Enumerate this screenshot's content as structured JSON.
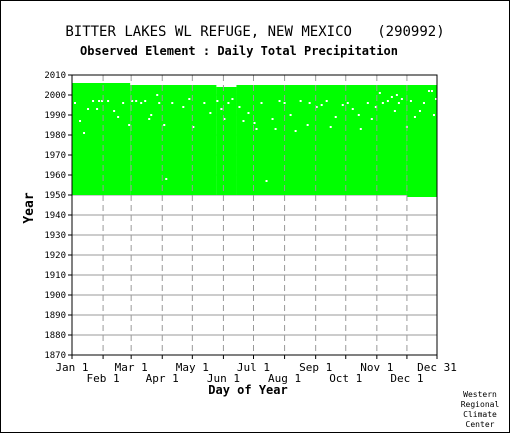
{
  "chart_data": {
    "type": "heatmap",
    "title": "BITTER LAKES WL REFUGE, NEW MEXICO   (290992)",
    "subtitle": "Observed Element : Daily Total Precipitation",
    "xlabel": "Day of Year",
    "ylabel": "Year",
    "ylim": [
      1870,
      2010
    ],
    "xlim": [
      1,
      365
    ],
    "yticks": [
      "1870",
      "1880",
      "1890",
      "1900",
      "1910",
      "1920",
      "1930",
      "1940",
      "1950",
      "1960",
      "1970",
      "1980",
      "1990",
      "2000",
      "2010"
    ],
    "xticks_upper": [
      {
        "label": "Jan 1",
        "day": 1
      },
      {
        "label": "Mar 1",
        "day": 60
      },
      {
        "label": "May 1",
        "day": 121
      },
      {
        "label": "Jul 1",
        "day": 182
      },
      {
        "label": "Sep 1",
        "day": 244
      },
      {
        "label": "Nov 1",
        "day": 305
      },
      {
        "label": "Dec 31",
        "day": 365
      }
    ],
    "xticks_lower": [
      {
        "label": "Feb 1",
        "day": 32
      },
      {
        "label": "Apr 1",
        "day": 91
      },
      {
        "label": "Jun 1",
        "day": 152
      },
      {
        "label": "Aug 1",
        "day": 213
      },
      {
        "label": "Oct 1",
        "day": 274
      },
      {
        "label": "Dec 1",
        "day": 335
      }
    ],
    "grid": true,
    "data_color": "#00ff00",
    "coverage": [
      {
        "day_start": 1,
        "day_end": 59,
        "year_start": 1950,
        "year_end": 2006
      },
      {
        "day_start": 59,
        "day_end": 145,
        "year_start": 1950,
        "year_end": 2005
      },
      {
        "day_start": 145,
        "day_end": 165,
        "year_start": 1950,
        "year_end": 2004
      },
      {
        "day_start": 165,
        "day_end": 335,
        "year_start": 1950,
        "year_end": 2005
      },
      {
        "day_start": 335,
        "day_end": 365,
        "year_start": 1949,
        "year_end": 2005
      }
    ],
    "missing_days": [
      {
        "day": 4,
        "year": 1996
      },
      {
        "day": 9,
        "year": 1987
      },
      {
        "day": 13,
        "year": 1981
      },
      {
        "day": 17,
        "year": 1993
      },
      {
        "day": 22,
        "year": 1997
      },
      {
        "day": 26,
        "year": 1993
      },
      {
        "day": 28,
        "year": 1997
      },
      {
        "day": 31,
        "year": 1997
      },
      {
        "day": 37,
        "year": 1997
      },
      {
        "day": 43,
        "year": 1992
      },
      {
        "day": 47,
        "year": 1989
      },
      {
        "day": 52,
        "year": 1996
      },
      {
        "day": 58,
        "year": 1985
      },
      {
        "day": 61,
        "year": 1997
      },
      {
        "day": 65,
        "year": 1997
      },
      {
        "day": 70,
        "year": 1996
      },
      {
        "day": 74,
        "year": 1997
      },
      {
        "day": 78,
        "year": 1988
      },
      {
        "day": 80,
        "year": 1990
      },
      {
        "day": 86,
        "year": 2000
      },
      {
        "day": 88,
        "year": 1996
      },
      {
        "day": 93,
        "year": 1985
      },
      {
        "day": 95,
        "year": 1958
      },
      {
        "day": 101,
        "year": 1996
      },
      {
        "day": 112,
        "year": 1994
      },
      {
        "day": 118,
        "year": 1998
      },
      {
        "day": 122,
        "year": 1984
      },
      {
        "day": 133,
        "year": 1996
      },
      {
        "day": 139,
        "year": 1991
      },
      {
        "day": 146,
        "year": 1997
      },
      {
        "day": 150,
        "year": 1993
      },
      {
        "day": 153,
        "year": 1988
      },
      {
        "day": 157,
        "year": 1996
      },
      {
        "day": 161,
        "year": 1998
      },
      {
        "day": 168,
        "year": 1994
      },
      {
        "day": 172,
        "year": 1987
      },
      {
        "day": 177,
        "year": 1991
      },
      {
        "day": 183,
        "year": 1986
      },
      {
        "day": 185,
        "year": 1983
      },
      {
        "day": 190,
        "year": 1996
      },
      {
        "day": 195,
        "year": 1957
      },
      {
        "day": 201,
        "year": 1988
      },
      {
        "day": 204,
        "year": 1983
      },
      {
        "day": 208,
        "year": 1997
      },
      {
        "day": 213,
        "year": 1996
      },
      {
        "day": 219,
        "year": 1990
      },
      {
        "day": 224,
        "year": 1982
      },
      {
        "day": 229,
        "year": 1997
      },
      {
        "day": 236,
        "year": 1985
      },
      {
        "day": 238,
        "year": 1996
      },
      {
        "day": 245,
        "year": 1994
      },
      {
        "day": 250,
        "year": 1995
      },
      {
        "day": 255,
        "year": 1997
      },
      {
        "day": 259,
        "year": 1984
      },
      {
        "day": 264,
        "year": 1989
      },
      {
        "day": 271,
        "year": 1995
      },
      {
        "day": 276,
        "year": 1996
      },
      {
        "day": 281,
        "year": 1993
      },
      {
        "day": 287,
        "year": 1990
      },
      {
        "day": 289,
        "year": 1983
      },
      {
        "day": 296,
        "year": 1996
      },
      {
        "day": 300,
        "year": 1988
      },
      {
        "day": 304,
        "year": 1994
      },
      {
        "day": 308,
        "year": 2001
      },
      {
        "day": 311,
        "year": 1996
      },
      {
        "day": 316,
        "year": 1997
      },
      {
        "day": 320,
        "year": 1999
      },
      {
        "day": 323,
        "year": 1992
      },
      {
        "day": 325,
        "year": 2000
      },
      {
        "day": 327,
        "year": 1996
      },
      {
        "day": 330,
        "year": 1998
      },
      {
        "day": 335,
        "year": 1984
      },
      {
        "day": 339,
        "year": 1997
      },
      {
        "day": 343,
        "year": 1989
      },
      {
        "day": 348,
        "year": 1992
      },
      {
        "day": 352,
        "year": 1996
      },
      {
        "day": 357,
        "year": 2002
      },
      {
        "day": 360,
        "year": 2002
      },
      {
        "day": 362,
        "year": 1990
      },
      {
        "day": 364,
        "year": 1998
      }
    ]
  },
  "credit": [
    "Western",
    "Regional",
    "Climate",
    "Center"
  ]
}
